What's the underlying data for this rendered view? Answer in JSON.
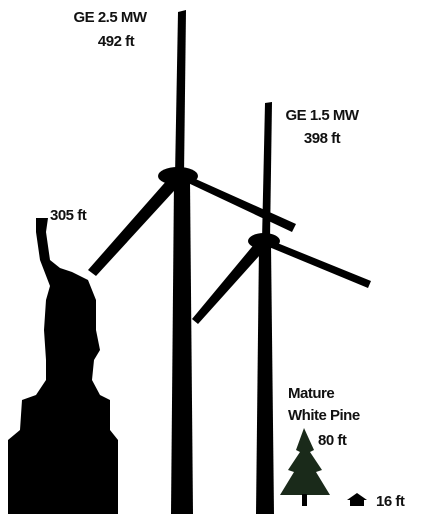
{
  "items": [
    {
      "name": "GE 2.5 MW",
      "height": "492 ft"
    },
    {
      "name": "GE 1.5 MW",
      "height": "398 ft"
    },
    {
      "height": "305 ft"
    },
    {
      "name_lines": [
        "Mature",
        "White Pine"
      ],
      "height": "80 ft"
    },
    {
      "height": "16 ft"
    }
  ]
}
